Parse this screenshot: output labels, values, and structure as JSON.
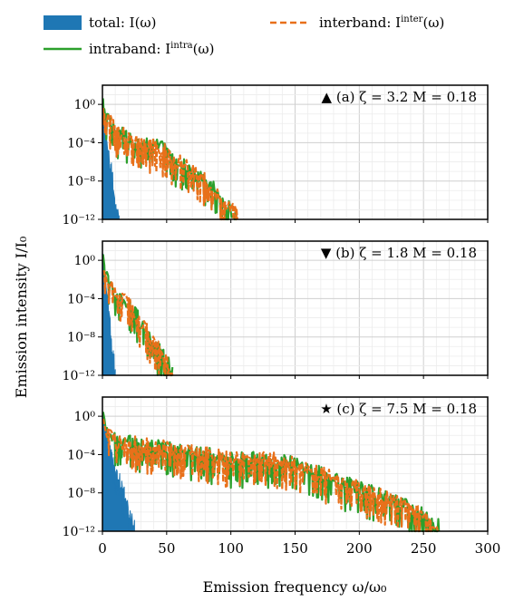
{
  "legend": {
    "total": "total: I(ω)",
    "intraband": "intraband: I",
    "intraband_sup": "intra",
    "intraband_tail": "(ω)",
    "interband": "interband: I",
    "interband_sup": "inter",
    "interband_tail": "(ω)",
    "colors": {
      "total": "#1f77b4",
      "intraband": "#2ca02c",
      "interband": "#e8701a"
    }
  },
  "chart_data": [
    {
      "type": "line",
      "panel": "(a)",
      "annotation": "▲ (a) ζ = 3.2 M = 0.18",
      "marker": "triangle-up",
      "ylabel": "Emission intensity I/I₀",
      "xlim": [
        0,
        300
      ],
      "ylim_exp": [
        -12,
        2
      ],
      "yscale": "log",
      "yticks": [
        "10⁰",
        "10⁻⁴",
        "10⁻⁸",
        "10⁻¹²"
      ],
      "cutoffs": {
        "total": 13,
        "intraband": 105,
        "interband": 105
      },
      "series": [
        {
          "name": "total: I(ω)",
          "envelope_exp": [
            [
              0,
              1
            ],
            [
              2,
              -2
            ],
            [
              5,
              -6
            ],
            [
              8,
              -8
            ],
            [
              10,
              -11
            ],
            [
              13,
              -12
            ]
          ]
        },
        {
          "name": "intraband: I^intra(ω)",
          "envelope_exp": [
            [
              0,
              1
            ],
            [
              3,
              -2
            ],
            [
              10,
              -3
            ],
            [
              20,
              -4
            ],
            [
              30,
              -4.5
            ],
            [
              45,
              -5
            ],
            [
              55,
              -6
            ],
            [
              65,
              -7
            ],
            [
              75,
              -8
            ],
            [
              85,
              -9
            ],
            [
              95,
              -11
            ],
            [
              105,
              -12
            ]
          ]
        },
        {
          "name": "interband: I^inter(ω)",
          "envelope_exp": [
            [
              0,
              0
            ],
            [
              3,
              -2
            ],
            [
              10,
              -3
            ],
            [
              20,
              -4
            ],
            [
              30,
              -4.5
            ],
            [
              45,
              -5
            ],
            [
              55,
              -6
            ],
            [
              65,
              -7
            ],
            [
              75,
              -8
            ],
            [
              85,
              -9
            ],
            [
              95,
              -11
            ],
            [
              105,
              -12
            ]
          ]
        }
      ]
    },
    {
      "type": "line",
      "panel": "(b)",
      "annotation": "▼ (b) ζ = 1.8 M = 0.18",
      "marker": "triangle-down",
      "xlim": [
        0,
        300
      ],
      "ylim_exp": [
        -12,
        2
      ],
      "yscale": "log",
      "yticks": [
        "10⁰",
        "10⁻⁴",
        "10⁻⁸",
        "10⁻¹²"
      ],
      "cutoffs": {
        "total": 10,
        "intraband": 55,
        "interband": 55
      },
      "series": [
        {
          "name": "total: I(ω)",
          "envelope_exp": [
            [
              0,
              1
            ],
            [
              3,
              -3
            ],
            [
              6,
              -7
            ],
            [
              8,
              -10
            ],
            [
              10,
              -12
            ]
          ]
        },
        {
          "name": "intraband: I^intra(ω)",
          "envelope_exp": [
            [
              0,
              1
            ],
            [
              3,
              -2
            ],
            [
              10,
              -4
            ],
            [
              20,
              -5
            ],
            [
              30,
              -7
            ],
            [
              40,
              -9
            ],
            [
              50,
              -11
            ],
            [
              55,
              -12
            ]
          ]
        },
        {
          "name": "interband: I^inter(ω)",
          "envelope_exp": [
            [
              0,
              -1
            ],
            [
              3,
              -2
            ],
            [
              10,
              -4
            ],
            [
              20,
              -5
            ],
            [
              30,
              -7
            ],
            [
              40,
              -9
            ],
            [
              50,
              -11
            ],
            [
              55,
              -12
            ]
          ]
        }
      ]
    },
    {
      "type": "line",
      "panel": "(c)",
      "annotation": "★ (c) ζ = 7.5 M = 0.18",
      "marker": "star",
      "xlabel": "Emission frequency ω/ω₀",
      "xlim": [
        0,
        300
      ],
      "xticks": [
        "0",
        "50",
        "100",
        "150",
        "200",
        "250",
        "300"
      ],
      "ylim_exp": [
        -12,
        2
      ],
      "yscale": "log",
      "yticks": [
        "10⁰",
        "10⁻⁴",
        "10⁻⁸",
        "10⁻¹²"
      ],
      "cutoffs": {
        "total": 25,
        "intraband": 262,
        "interband": 262
      },
      "series": [
        {
          "name": "total: I(ω)",
          "envelope_exp": [
            [
              0,
              1
            ],
            [
              3,
              -2
            ],
            [
              8,
              -5
            ],
            [
              13,
              -7
            ],
            [
              18,
              -9
            ],
            [
              22,
              -11
            ],
            [
              25,
              -12
            ]
          ]
        },
        {
          "name": "intraband: I^intra(ω)",
          "envelope_exp": [
            [
              0,
              1
            ],
            [
              3,
              -2
            ],
            [
              10,
              -3
            ],
            [
              30,
              -3.5
            ],
            [
              60,
              -4
            ],
            [
              100,
              -5
            ],
            [
              130,
              -5
            ],
            [
              150,
              -5.5
            ],
            [
              180,
              -7
            ],
            [
              200,
              -8
            ],
            [
              220,
              -9
            ],
            [
              240,
              -10
            ],
            [
              262,
              -12
            ]
          ]
        },
        {
          "name": "interband: I^inter(ω)",
          "envelope_exp": [
            [
              0,
              0
            ],
            [
              3,
              -2
            ],
            [
              10,
              -3
            ],
            [
              30,
              -3.5
            ],
            [
              60,
              -4
            ],
            [
              100,
              -5
            ],
            [
              130,
              -5
            ],
            [
              150,
              -5.5
            ],
            [
              180,
              -7
            ],
            [
              200,
              -8
            ],
            [
              220,
              -9
            ],
            [
              240,
              -10
            ],
            [
              262,
              -12
            ]
          ]
        }
      ]
    }
  ],
  "axes": {
    "ylabel": "Emission intensity I/I₀",
    "xlabel": "Emission frequency ω/ω₀",
    "xticks": [
      "0",
      "50",
      "100",
      "150",
      "200",
      "250",
      "300"
    ]
  }
}
